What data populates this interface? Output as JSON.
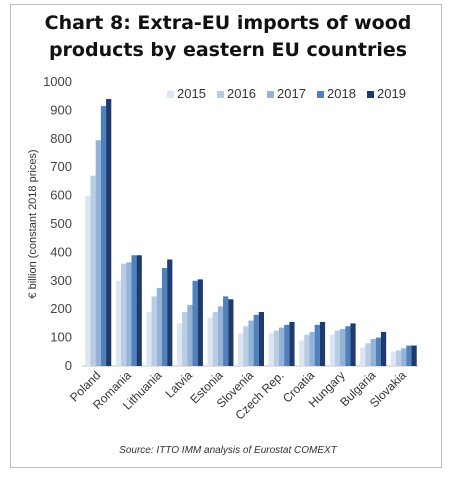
{
  "chart_data": {
    "type": "bar",
    "title_line1": "Chart 8: Extra-EU imports of wood",
    "title_line2": "products by eastern EU countries",
    "ylabel": "€ billion (constant 2018 prices)",
    "source": "Source: ITTO IMM analysis of Eurostat COMEXT",
    "ylim": [
      0,
      1000
    ],
    "yticks": [
      0,
      100,
      200,
      300,
      400,
      500,
      600,
      700,
      800,
      900,
      1000
    ],
    "grid": false,
    "legend_position": "top-right",
    "categories": [
      "Poland",
      "Romania",
      "Lithuania",
      "Latvia",
      "Estonia",
      "Slovenia",
      "Czech Rep.",
      "Croatia",
      "Hungary",
      "Bulgaria",
      "Slovakia"
    ],
    "series": [
      {
        "name": "2015",
        "color": "#dce6f2",
        "values": [
          600,
          300,
          190,
          150,
          170,
          115,
          115,
          90,
          110,
          65,
          50
        ]
      },
      {
        "name": "2016",
        "color": "#b8cce4",
        "values": [
          670,
          360,
          245,
          190,
          190,
          140,
          125,
          110,
          125,
          80,
          55
        ]
      },
      {
        "name": "2017",
        "color": "#95b3d7",
        "values": [
          795,
          365,
          275,
          215,
          210,
          160,
          135,
          120,
          130,
          95,
          62
        ]
      },
      {
        "name": "2018",
        "color": "#4f81bd",
        "values": [
          915,
          390,
          345,
          300,
          245,
          180,
          145,
          145,
          140,
          100,
          72
        ]
      },
      {
        "name": "2019",
        "color": "#1f3b6d",
        "values": [
          940,
          390,
          375,
          305,
          235,
          190,
          155,
          155,
          150,
          120,
          72
        ]
      }
    ]
  }
}
